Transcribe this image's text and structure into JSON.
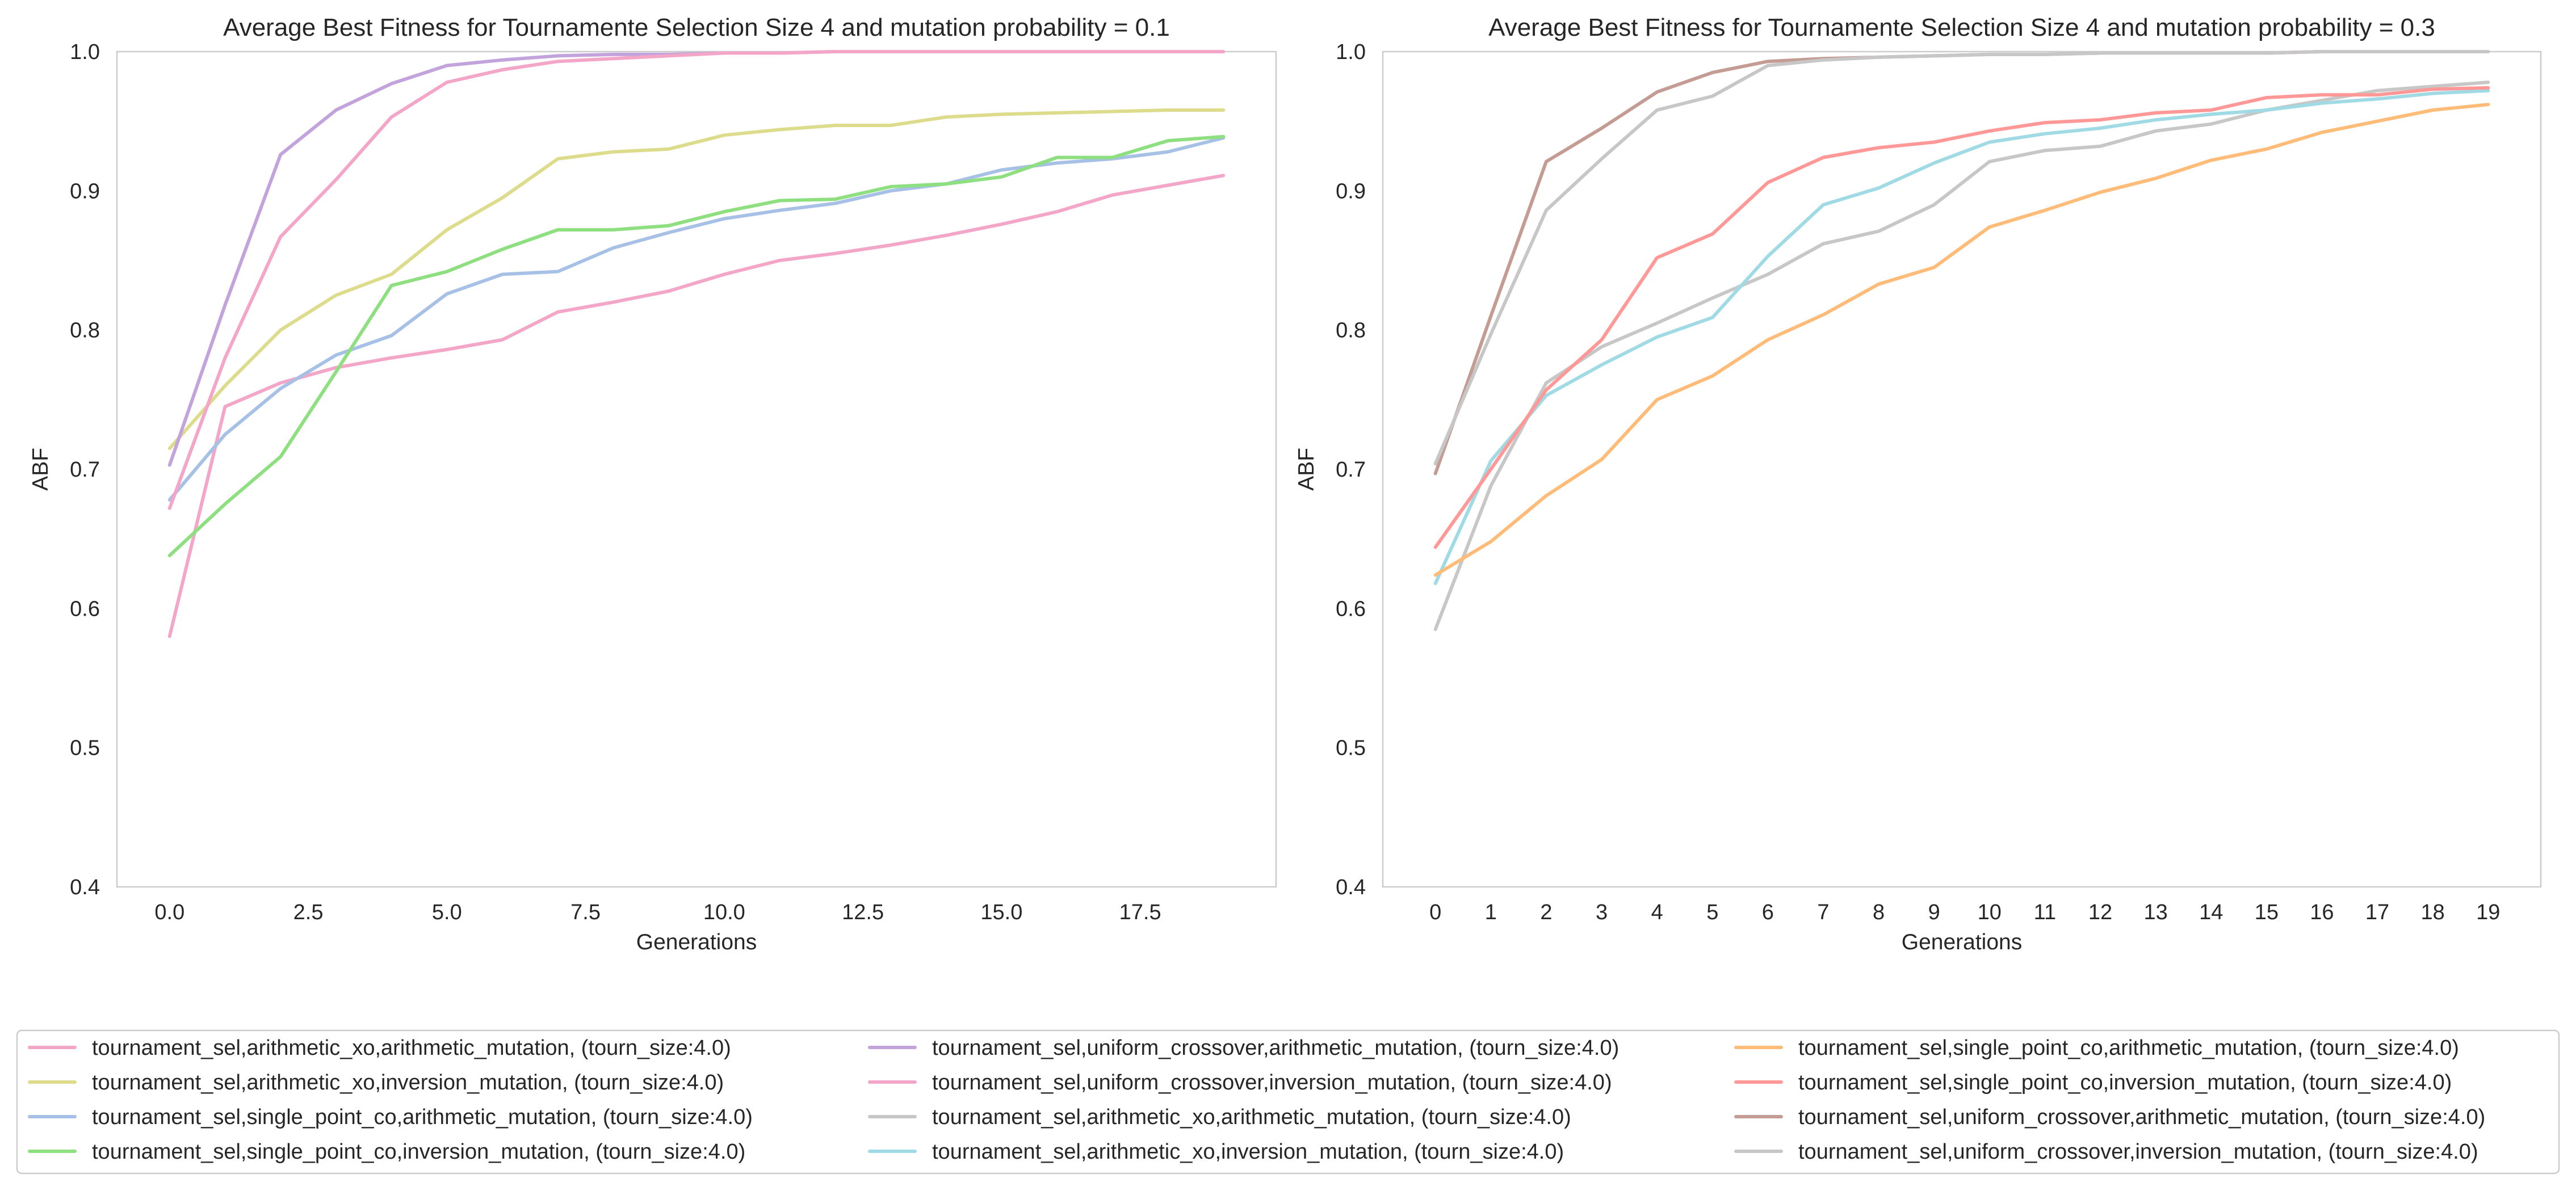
{
  "chart_data": [
    {
      "type": "line",
      "title": "Average Best Fitness for Tournamente Selection Size 4 and mutation probability = 0.1",
      "xlabel": "Generations",
      "ylabel": "ABF",
      "xlim": [
        -0.95,
        19.95
      ],
      "ylim": [
        0.4,
        1.0
      ],
      "xticks": [
        0.0,
        2.5,
        5.0,
        7.5,
        10.0,
        12.5,
        15.0,
        17.5
      ],
      "xtick_labels": [
        "0.0",
        "2.5",
        "5.0",
        "7.5",
        "10.0",
        "12.5",
        "15.0",
        "17.5"
      ],
      "yticks": [
        0.4,
        0.5,
        0.6,
        0.7,
        0.8,
        0.9,
        1.0
      ],
      "ytick_labels": [
        "0.4",
        "0.5",
        "0.6",
        "0.7",
        "0.8",
        "0.9",
        "1.0"
      ],
      "grid": false,
      "x": [
        0,
        1,
        2,
        3,
        4,
        5,
        6,
        7,
        8,
        9,
        10,
        11,
        12,
        13,
        14,
        15,
        16,
        17,
        18,
        19
      ],
      "series": [
        {
          "name": "tournament_sel,arithmetic_xo,arithmetic_mutation, (tourn_size:4.0)",
          "color": "#f4a6c8",
          "values": [
            0.58,
            0.745,
            0.762,
            0.773,
            0.78,
            0.786,
            0.793,
            0.813,
            0.82,
            0.828,
            0.84,
            0.85,
            0.855,
            0.861,
            0.868,
            0.876,
            0.885,
            0.897,
            0.904,
            0.911
          ]
        },
        {
          "name": "tournament_sel,arithmetic_xo,inversion_mutation, (tourn_size:4.0)",
          "color": "#dcdc8c",
          "values": [
            0.715,
            0.76,
            0.8,
            0.825,
            0.84,
            0.872,
            0.895,
            0.923,
            0.928,
            0.93,
            0.94,
            0.944,
            0.947,
            0.947,
            0.953,
            0.955,
            0.956,
            0.957,
            0.958,
            0.958
          ]
        },
        {
          "name": "tournament_sel,single_point_co,arithmetic_mutation, (tourn_size:4.0)",
          "color": "#a7c1e6",
          "values": [
            0.678,
            0.725,
            0.758,
            0.782,
            0.796,
            0.826,
            0.84,
            0.842,
            0.859,
            0.87,
            0.88,
            0.886,
            0.891,
            0.9,
            0.905,
            0.915,
            0.92,
            0.923,
            0.928,
            0.938
          ]
        },
        {
          "name": "tournament_sel,single_point_co,inversion_mutation, (tourn_size:4.0)",
          "color": "#8ddf7f",
          "values": [
            0.638,
            0.675,
            0.709,
            0.77,
            0.832,
            0.842,
            0.858,
            0.872,
            0.872,
            0.875,
            0.885,
            0.893,
            0.894,
            0.903,
            0.905,
            0.91,
            0.924,
            0.924,
            0.936,
            0.939
          ]
        },
        {
          "name": "tournament_sel,uniform_crossover,arithmetic_mutation, (tourn_size:4.0)",
          "color": "#c3a3dc",
          "values": [
            0.703,
            0.818,
            0.926,
            0.958,
            0.977,
            0.99,
            0.994,
            0.997,
            0.998,
            0.998,
            0.999,
            0.999,
            1.0,
            1.0,
            1.0,
            1.0,
            1.0,
            1.0,
            1.0,
            1.0
          ]
        },
        {
          "name": "tournament_sel,uniform_crossover,inversion_mutation, (tourn_size:4.0)",
          "color": "#f4a6c8",
          "values": [
            0.672,
            0.78,
            0.867,
            0.908,
            0.953,
            0.978,
            0.987,
            0.993,
            0.995,
            0.997,
            0.999,
            0.999,
            1.0,
            1.0,
            1.0,
            1.0,
            1.0,
            1.0,
            1.0,
            1.0
          ]
        }
      ]
    },
    {
      "type": "line",
      "title": "Average Best Fitness for Tournamente Selection Size 4 and mutation probability = 0.3",
      "xlabel": "Generations",
      "ylabel": "ABF",
      "xlim": [
        -0.95,
        19.95
      ],
      "ylim": [
        0.4,
        1.0
      ],
      "xticks": [
        0,
        1,
        2,
        3,
        4,
        5,
        6,
        7,
        8,
        9,
        10,
        11,
        12,
        13,
        14,
        15,
        16,
        17,
        18,
        19
      ],
      "xtick_labels": [
        "0",
        "1",
        "2",
        "3",
        "4",
        "5",
        "6",
        "7",
        "8",
        "9",
        "10",
        "11",
        "12",
        "13",
        "14",
        "15",
        "16",
        "17",
        "18",
        "19"
      ],
      "yticks": [
        0.4,
        0.5,
        0.6,
        0.7,
        0.8,
        0.9,
        1.0
      ],
      "ytick_labels": [
        "0.4",
        "0.5",
        "0.6",
        "0.7",
        "0.8",
        "0.9",
        "1.0"
      ],
      "grid": false,
      "x": [
        0,
        1,
        2,
        3,
        4,
        5,
        6,
        7,
        8,
        9,
        10,
        11,
        12,
        13,
        14,
        15,
        16,
        17,
        18,
        19
      ],
      "series": [
        {
          "name": "tournament_sel,arithmetic_xo,arithmetic_mutation, (tourn_size:4.0)",
          "color": "#c7c7c7",
          "values": [
            0.585,
            0.688,
            0.762,
            0.788,
            0.805,
            0.823,
            0.84,
            0.862,
            0.871,
            0.89,
            0.921,
            0.929,
            0.932,
            0.943,
            0.948,
            0.958,
            0.965,
            0.972,
            0.975,
            0.978
          ]
        },
        {
          "name": "tournament_sel,arithmetic_xo,inversion_mutation, (tourn_size:4.0)",
          "color": "#9fdae5",
          "values": [
            0.618,
            0.706,
            0.753,
            0.775,
            0.795,
            0.809,
            0.853,
            0.89,
            0.902,
            0.92,
            0.935,
            0.941,
            0.945,
            0.951,
            0.955,
            0.958,
            0.963,
            0.966,
            0.97,
            0.972
          ]
        },
        {
          "name": "tournament_sel,single_point_co,arithmetic_mutation, (tourn_size:4.0)",
          "color": "#ffbb78",
          "values": [
            0.624,
            0.648,
            0.681,
            0.707,
            0.75,
            0.767,
            0.793,
            0.811,
            0.833,
            0.845,
            0.874,
            0.886,
            0.899,
            0.909,
            0.922,
            0.93,
            0.942,
            0.95,
            0.958,
            0.962
          ]
        },
        {
          "name": "tournament_sel,single_point_co,inversion_mutation, (tourn_size:4.0)",
          "color": "#ff9896",
          "values": [
            0.644,
            0.7,
            0.757,
            0.793,
            0.852,
            0.869,
            0.906,
            0.924,
            0.931,
            0.935,
            0.943,
            0.949,
            0.951,
            0.956,
            0.958,
            0.967,
            0.969,
            0.969,
            0.973,
            0.974
          ]
        },
        {
          "name": "tournament_sel,uniform_crossover,arithmetic_mutation, (tourn_size:4.0)",
          "color": "#c49c94",
          "values": [
            0.697,
            0.81,
            0.921,
            0.945,
            0.971,
            0.985,
            0.993,
            0.995,
            0.996,
            0.997,
            0.998,
            0.998,
            0.999,
            0.999,
            0.999,
            0.999,
            1.0,
            1.0,
            1.0,
            1.0
          ]
        },
        {
          "name": "tournament_sel,uniform_crossover,inversion_mutation, (tourn_size:4.0)",
          "color": "#c7c7c7",
          "values": [
            0.704,
            0.797,
            0.886,
            0.923,
            0.958,
            0.968,
            0.99,
            0.994,
            0.996,
            0.997,
            0.998,
            0.998,
            0.999,
            0.999,
            0.999,
            0.999,
            1.0,
            1.0,
            1.0,
            1.0
          ]
        }
      ]
    }
  ],
  "legend": {
    "placement": "bottom",
    "columns": [
      [
        {
          "label": "tournament_sel,arithmetic_xo,arithmetic_mutation, (tourn_size:4.0)",
          "color": "#f4a6c8"
        },
        {
          "label": "tournament_sel,arithmetic_xo,inversion_mutation, (tourn_size:4.0)",
          "color": "#dcdc8c"
        },
        {
          "label": "tournament_sel,single_point_co,arithmetic_mutation, (tourn_size:4.0)",
          "color": "#a7c1e6"
        },
        {
          "label": "tournament_sel,single_point_co,inversion_mutation, (tourn_size:4.0)",
          "color": "#8ddf7f"
        }
      ],
      [
        {
          "label": "tournament_sel,uniform_crossover,arithmetic_mutation, (tourn_size:4.0)",
          "color": "#c3a3dc"
        },
        {
          "label": "tournament_sel,uniform_crossover,inversion_mutation, (tourn_size:4.0)",
          "color": "#f4a6c8"
        },
        {
          "label": "tournament_sel,arithmetic_xo,arithmetic_mutation, (tourn_size:4.0)",
          "color": "#c7c7c7"
        },
        {
          "label": "tournament_sel,arithmetic_xo,inversion_mutation, (tourn_size:4.0)",
          "color": "#9fdae5"
        }
      ],
      [
        {
          "label": "tournament_sel,single_point_co,arithmetic_mutation, (tourn_size:4.0)",
          "color": "#ffbb78"
        },
        {
          "label": "tournament_sel,single_point_co,inversion_mutation, (tourn_size:4.0)",
          "color": "#ff9896"
        },
        {
          "label": "tournament_sel,uniform_crossover,arithmetic_mutation, (tourn_size:4.0)",
          "color": "#c49c94"
        },
        {
          "label": "tournament_sel,uniform_crossover,inversion_mutation, (tourn_size:4.0)",
          "color": "#c7c7c7"
        }
      ]
    ]
  }
}
